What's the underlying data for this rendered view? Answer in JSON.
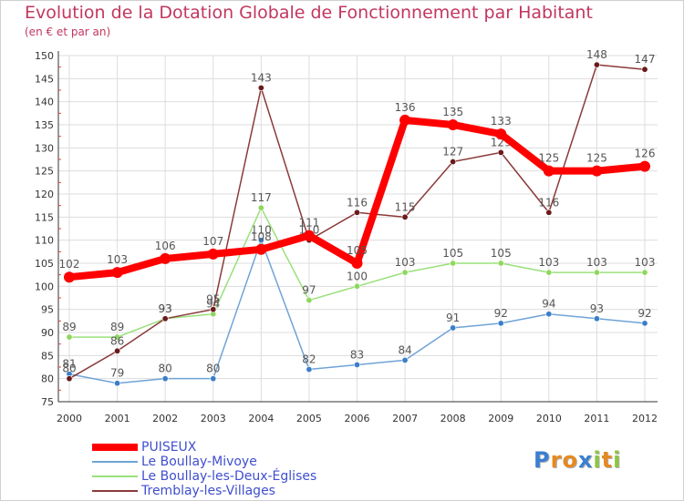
{
  "title": "Evolution de la Dotation Globale de Fonctionnement par Habitant",
  "subtitle": "(en € et par an)",
  "logo": {
    "text": "Proxiti",
    "letters": [
      {
        "ch": "P",
        "color": "#3a7fd0"
      },
      {
        "ch": "r",
        "color": "#e6891f"
      },
      {
        "ch": "o",
        "color": "#e6891f"
      },
      {
        "ch": "x",
        "color": "#3a7fd0"
      },
      {
        "ch": "i",
        "color": "#8cc63f"
      },
      {
        "ch": "t",
        "color": "#e6891f"
      },
      {
        "ch": "i",
        "color": "#8cc63f"
      }
    ]
  },
  "chart_data": {
    "type": "line",
    "title": "Evolution de la Dotation Globale de Fonctionnement par Habitant",
    "ylabel": "(en € et par an)",
    "xlabel": "",
    "x": [
      2000,
      2001,
      2002,
      2003,
      2004,
      2005,
      2006,
      2007,
      2008,
      2009,
      2010,
      2011,
      2012
    ],
    "ylim": [
      75,
      150
    ],
    "yticks": [
      75,
      80,
      85,
      90,
      95,
      100,
      105,
      110,
      115,
      120,
      125,
      130,
      135,
      140,
      145,
      150
    ],
    "grid": true,
    "legend_position": "bottom-left",
    "series": [
      {
        "name": "PUISEUX",
        "color": "#ff0000",
        "marker": "#ff0000",
        "emphasis": true,
        "values": [
          102,
          103,
          106,
          107,
          108,
          111,
          105,
          136,
          135,
          133,
          125,
          125,
          126
        ]
      },
      {
        "name": "Le Boullay-Mivoye",
        "color": "#6fa3d6",
        "marker": "#3a7fc8",
        "emphasis": false,
        "values": [
          81,
          79,
          80,
          80,
          110,
          82,
          83,
          84,
          91,
          92,
          94,
          93,
          92
        ]
      },
      {
        "name": "Le Boullay-les-Deux-Églises",
        "color": "#99e07a",
        "marker": "#8ed85c",
        "emphasis": false,
        "values": [
          89,
          89,
          93,
          94,
          117,
          97,
          100,
          103,
          105,
          105,
          103,
          103,
          103
        ]
      },
      {
        "name": "Tremblay-les-Villages",
        "color": "#8b3a3a",
        "marker": "#6b1a1a",
        "emphasis": false,
        "values": [
          80,
          86,
          93,
          95,
          143,
          110,
          116,
          115,
          127,
          129,
          116,
          148,
          147
        ]
      }
    ]
  }
}
